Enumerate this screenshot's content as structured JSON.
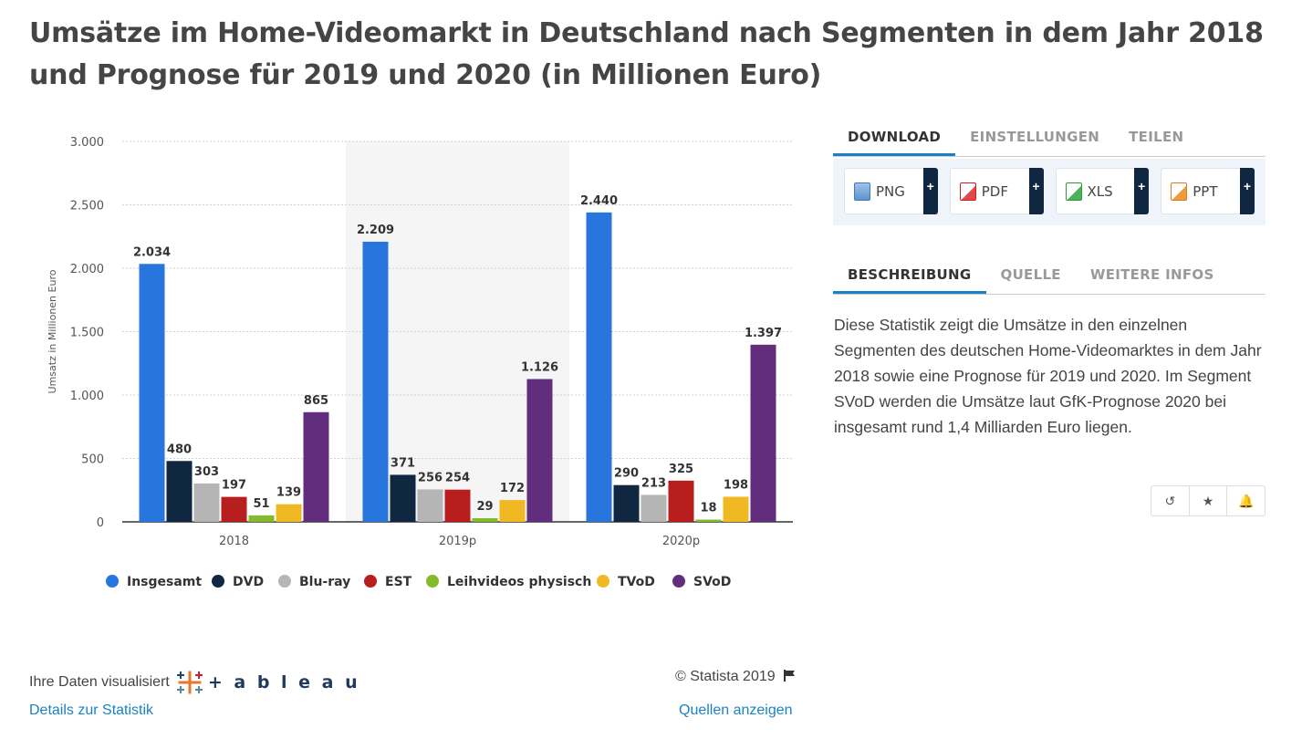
{
  "title": "Umsätze im Home-Videomarkt in Deutschland nach Segmenten in dem Jahr 2018 und Prognose für 2019 und 2020 (in Millionen Euro)",
  "chart_data": {
    "type": "bar",
    "title": "Umsätze im Home-Videomarkt in Deutschland nach Segmenten in dem Jahr 2018 und Prognose für 2019 und 2020 (in Millionen Euro)",
    "xlabel": "",
    "ylabel": "Umsatz in Millionen Euro",
    "ylim": [
      0,
      3000
    ],
    "yticks": [
      0,
      500,
      1000,
      1500,
      2000,
      2500,
      3000
    ],
    "ytick_labels": [
      "0",
      "500",
      "1.000",
      "1.500",
      "2.000",
      "2.500",
      "3.000"
    ],
    "grid": true,
    "legend_position": "bottom",
    "highlighted_category": "2019p",
    "categories": [
      "2018",
      "2019p",
      "2020p"
    ],
    "series": [
      {
        "name": "Insgesamt",
        "color": "#2876dd",
        "values": [
          2034,
          2209,
          2440
        ],
        "labels": [
          "2.034",
          "2.209",
          "2.440"
        ]
      },
      {
        "name": "DVD",
        "color": "#0f2741",
        "values": [
          480,
          371,
          290
        ],
        "labels": [
          "480",
          "371",
          "290"
        ]
      },
      {
        "name": "Blu-ray",
        "color": "#b5b5b5",
        "values": [
          303,
          256,
          213
        ],
        "labels": [
          "303",
          "256",
          "213"
        ]
      },
      {
        "name": "EST",
        "color": "#b81e1e",
        "values": [
          197,
          254,
          325
        ],
        "labels": [
          "197",
          "254",
          "325"
        ]
      },
      {
        "name": "Leihvideos physisch",
        "color": "#84bb2d",
        "values": [
          51,
          29,
          18
        ],
        "labels": [
          "51",
          "29",
          "18"
        ]
      },
      {
        "name": "TVoD",
        "color": "#f0b823",
        "values": [
          139,
          172,
          198
        ],
        "labels": [
          "139",
          "172",
          "198"
        ]
      },
      {
        "name": "SVoD",
        "color": "#632d7d",
        "values": [
          865,
          1126,
          1397
        ],
        "labels": [
          "865",
          "1.126",
          "1.397"
        ]
      }
    ]
  },
  "tabs_top": {
    "download": "DOWNLOAD",
    "einstellungen": "EINSTELLUNGEN",
    "teilen": "TEILEN"
  },
  "downloads": [
    {
      "label": "PNG",
      "plus": "+",
      "icon": "image-file-icon",
      "color": "#3d7bbf"
    },
    {
      "label": "PDF",
      "plus": "+",
      "icon": "pdf-file-icon",
      "color": "#cc2020"
    },
    {
      "label": "XLS",
      "plus": "+",
      "icon": "excel-file-icon",
      "color": "#2e9a3a"
    },
    {
      "label": "PPT",
      "plus": "+",
      "icon": "powerpoint-file-icon",
      "color": "#e07a1f"
    }
  ],
  "tabs_info": {
    "beschreibung": "BESCHREIBUNG",
    "quelle": "QUELLE",
    "weitere": "WEITERE INFOS"
  },
  "description": "Diese Statistik zeigt die Umsätze in den einzelnen Segmenten des deutschen Home-Videomarktes in dem Jahr 2018 sowie eine Prognose für 2019 und 2020. Im Segment SVoD werden die Umsätze laut GfK-Prognose 2020 bei insgesamt rund 1,4 Milliarden Euro liegen.",
  "actions": {
    "history": "↺",
    "favorite": "★",
    "notify": "🔔"
  },
  "footer": {
    "visualized": "Ihre Daten visualisiert",
    "tableau": "+ a b l e a u",
    "copyright": "© Statista 2019",
    "details_link": "Details zur Statistik",
    "sources_link": "Quellen anzeigen"
  }
}
